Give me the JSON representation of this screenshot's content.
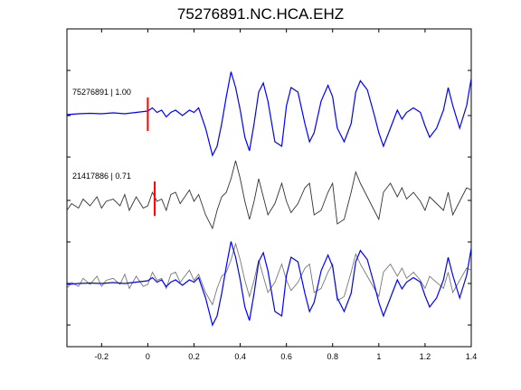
{
  "chart_data": {
    "type": "line",
    "title": "75276891.NC.HCA.EHZ",
    "xlim": [
      -0.35,
      1.4
    ],
    "x_ticks": [
      "-0.2",
      "0",
      "0.2",
      "0.4",
      "0.6",
      "0.8",
      "1",
      "1.2",
      "1.4"
    ],
    "x_tick_values": [
      -0.2,
      0,
      0.2,
      0.4,
      0.6,
      0.8,
      1,
      1.2,
      1.4
    ],
    "grid": false,
    "traces": [
      {
        "label": "75276891 | 1.00",
        "color": "#0000ff",
        "pick_time": 0.0,
        "pick_color": "#ff0000",
        "x": [
          -0.35,
          -0.3,
          -0.25,
          -0.2,
          -0.15,
          -0.1,
          -0.05,
          0.0,
          0.02,
          0.04,
          0.06,
          0.08,
          0.1,
          0.12,
          0.15,
          0.18,
          0.2,
          0.22,
          0.25,
          0.28,
          0.3,
          0.32,
          0.34,
          0.36,
          0.38,
          0.4,
          0.42,
          0.44,
          0.46,
          0.48,
          0.5,
          0.52,
          0.55,
          0.58,
          0.6,
          0.62,
          0.65,
          0.68,
          0.7,
          0.72,
          0.75,
          0.78,
          0.8,
          0.82,
          0.85,
          0.88,
          0.9,
          0.92,
          0.95,
          0.98,
          1.0,
          1.02,
          1.05,
          1.08,
          1.1,
          1.12,
          1.15,
          1.18,
          1.2,
          1.22,
          1.25,
          1.28,
          1.3,
          1.32,
          1.35,
          1.38,
          1.4
        ],
        "y": [
          0.0,
          0.02,
          0.03,
          0.02,
          0.04,
          0.02,
          0.05,
          0.08,
          0.15,
          0.05,
          0.1,
          -0.05,
          0.05,
          0.1,
          -0.02,
          0.1,
          0.05,
          0.15,
          -0.3,
          -0.9,
          -0.7,
          -0.2,
          0.4,
          0.95,
          0.6,
          0.1,
          -0.5,
          -0.8,
          -0.2,
          0.5,
          0.7,
          0.3,
          -0.6,
          -0.7,
          0.2,
          0.6,
          0.5,
          -0.2,
          -0.6,
          -0.4,
          0.3,
          0.65,
          0.4,
          -0.3,
          -0.6,
          -0.2,
          0.5,
          0.75,
          0.55,
          0.0,
          -0.4,
          -0.7,
          -0.3,
          0.1,
          -0.1,
          0.05,
          0.15,
          0.05,
          -0.25,
          -0.5,
          -0.3,
          0.1,
          0.6,
          0.2,
          -0.3,
          0.2,
          0.8
        ]
      },
      {
        "label": "21417886 | 0.71",
        "color": "#333333",
        "pick_time": 0.03,
        "pick_color": "#ff0000",
        "x": [
          -0.35,
          -0.33,
          -0.3,
          -0.28,
          -0.25,
          -0.22,
          -0.2,
          -0.18,
          -0.15,
          -0.12,
          -0.1,
          -0.08,
          -0.05,
          -0.02,
          0.0,
          0.02,
          0.04,
          0.06,
          0.08,
          0.1,
          0.12,
          0.14,
          0.16,
          0.18,
          0.2,
          0.22,
          0.25,
          0.28,
          0.3,
          0.32,
          0.34,
          0.36,
          0.38,
          0.4,
          0.42,
          0.44,
          0.46,
          0.48,
          0.5,
          0.52,
          0.55,
          0.58,
          0.6,
          0.62,
          0.65,
          0.68,
          0.7,
          0.72,
          0.75,
          0.78,
          0.8,
          0.82,
          0.85,
          0.88,
          0.9,
          0.92,
          0.95,
          0.98,
          1.0,
          1.02,
          1.05,
          1.08,
          1.1,
          1.12,
          1.15,
          1.18,
          1.2,
          1.22,
          1.25,
          1.28,
          1.3,
          1.32,
          1.35,
          1.38,
          1.4
        ],
        "y": [
          -0.1,
          0.05,
          -0.05,
          0.15,
          0.0,
          0.2,
          -0.05,
          0.1,
          0.15,
          0.0,
          0.25,
          -0.1,
          0.2,
          -0.05,
          0.0,
          0.3,
          0.1,
          0.15,
          -0.1,
          0.25,
          0.3,
          0.05,
          0.2,
          0.35,
          0.1,
          0.25,
          -0.2,
          -0.5,
          -0.1,
          0.2,
          0.3,
          0.6,
          1.0,
          0.6,
          0.1,
          -0.3,
          0.1,
          0.6,
          0.2,
          -0.2,
          0.05,
          0.5,
          0.1,
          -0.15,
          0.05,
          0.4,
          0.5,
          -0.2,
          -0.1,
          0.3,
          0.5,
          -0.4,
          -0.3,
          0.3,
          0.75,
          0.5,
          0.2,
          -0.1,
          -0.3,
          0.3,
          0.5,
          0.2,
          0.4,
          0.15,
          0.3,
          0.1,
          -0.1,
          0.2,
          0.05,
          -0.1,
          0.3,
          -0.2,
          0.1,
          0.4,
          0.35
        ]
      }
    ]
  }
}
